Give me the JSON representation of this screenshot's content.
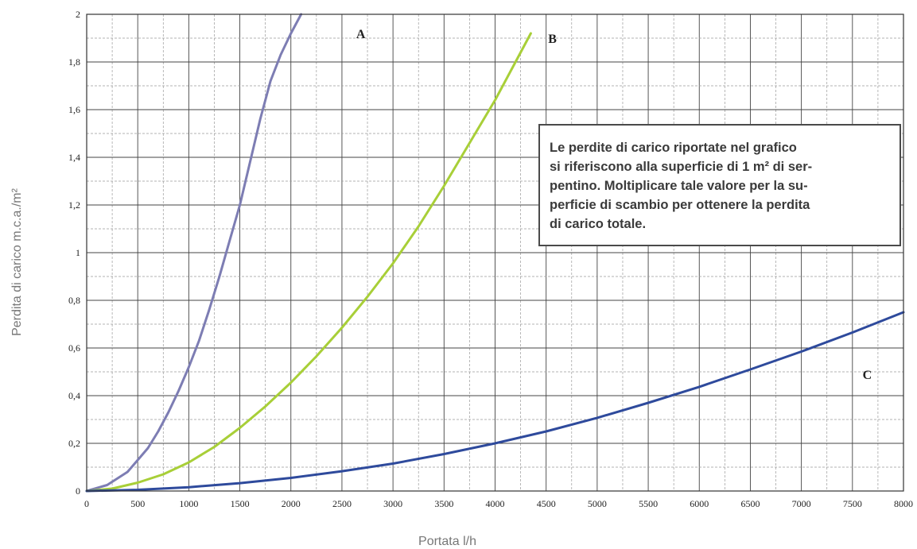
{
  "chart_data": {
    "type": "line",
    "xlabel": "Portata l/h",
    "ylabel": "Perdita di carico m.c.a./m²",
    "xlim": [
      0,
      8000
    ],
    "ylim": [
      0,
      2
    ],
    "x_ticks": [
      "0",
      "500",
      "1000",
      "1500",
      "2000",
      "2500",
      "3000",
      "3500",
      "4000",
      "4500",
      "5000",
      "5500",
      "6000",
      "6500",
      "7000",
      "7500",
      "8000"
    ],
    "y_ticks": [
      "0",
      "0,2",
      "0,4",
      "0,6",
      "0,8",
      "1",
      "1,2",
      "1,4",
      "1,6",
      "1,8",
      "2"
    ],
    "grid": true,
    "series": [
      {
        "name": "A",
        "color": "#7d7db3",
        "points": [
          [
            0,
            0
          ],
          [
            200,
            0.025
          ],
          [
            400,
            0.08
          ],
          [
            500,
            0.13
          ],
          [
            600,
            0.18
          ],
          [
            700,
            0.25
          ],
          [
            800,
            0.33
          ],
          [
            900,
            0.42
          ],
          [
            1000,
            0.52
          ],
          [
            1100,
            0.63
          ],
          [
            1200,
            0.76
          ],
          [
            1300,
            0.9
          ],
          [
            1400,
            1.05
          ],
          [
            1500,
            1.2
          ],
          [
            1600,
            1.38
          ],
          [
            1700,
            1.56
          ],
          [
            1800,
            1.72
          ],
          [
            1900,
            1.83
          ],
          [
            2000,
            1.92
          ],
          [
            2100,
            2.0
          ]
        ]
      },
      {
        "name": "B",
        "color": "#a8cf38",
        "points": [
          [
            0,
            0
          ],
          [
            250,
            0.01
          ],
          [
            500,
            0.035
          ],
          [
            750,
            0.07
          ],
          [
            1000,
            0.12
          ],
          [
            1250,
            0.185
          ],
          [
            1500,
            0.265
          ],
          [
            1750,
            0.355
          ],
          [
            2000,
            0.455
          ],
          [
            2250,
            0.565
          ],
          [
            2500,
            0.685
          ],
          [
            2750,
            0.815
          ],
          [
            3000,
            0.955
          ],
          [
            3250,
            1.11
          ],
          [
            3500,
            1.28
          ],
          [
            3750,
            1.46
          ],
          [
            4000,
            1.64
          ],
          [
            4250,
            1.84
          ],
          [
            4350,
            1.92
          ]
        ]
      },
      {
        "name": "C",
        "color": "#2e4a9c",
        "points": [
          [
            0,
            0
          ],
          [
            500,
            0.005
          ],
          [
            1000,
            0.016
          ],
          [
            1500,
            0.033
          ],
          [
            2000,
            0.055
          ],
          [
            2500,
            0.083
          ],
          [
            3000,
            0.115
          ],
          [
            3500,
            0.155
          ],
          [
            4000,
            0.2
          ],
          [
            4500,
            0.25
          ],
          [
            5000,
            0.307
          ],
          [
            5500,
            0.37
          ],
          [
            6000,
            0.437
          ],
          [
            6500,
            0.51
          ],
          [
            7000,
            0.585
          ],
          [
            7500,
            0.665
          ],
          [
            8000,
            0.75
          ]
        ]
      }
    ],
    "annotations": [
      "A",
      "B",
      "C"
    ],
    "note_lines": [
      "Le perdite di carico riportate nel grafico",
      "si riferiscono alla superficie di 1 m² di ser-",
      "pentino. Moltiplicare tale valore per la su-",
      "perficie di scambio per ottenere la perdita",
      "di carico totale."
    ]
  }
}
